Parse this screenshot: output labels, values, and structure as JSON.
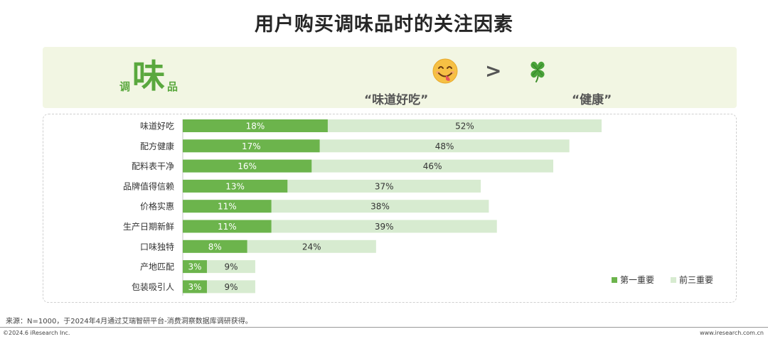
{
  "page": {
    "title": "用户购买调味品时的关注因素"
  },
  "banner": {
    "logo_left": "调",
    "logo_center": "味",
    "logo_right": "品",
    "taste_label": "“味道好吃”",
    "health_label": "“健康”",
    "comparator": ">",
    "taste_icon": "savoring-face-emoji-icon",
    "health_icon": "four-leaf-clover-icon"
  },
  "colors": {
    "first_choice": "#6cb44c",
    "top_three": "#d7ebd0",
    "brand_green": "#5aa83e"
  },
  "chart_data": {
    "type": "bar",
    "orientation": "horizontal",
    "layout": "overlapped",
    "categories": [
      "味道好吃",
      "配方健康",
      "配料表干净",
      "品牌值得信赖",
      "价格实惠",
      "生产日期新鲜",
      "口味独特",
      "产地匹配",
      "包装吸引人"
    ],
    "series": [
      {
        "name": "第一重要",
        "values": [
          18,
          17,
          16,
          13,
          11,
          11,
          8,
          3,
          3
        ],
        "labels": [
          "18%",
          "17%",
          "16%",
          "13%",
          "11%",
          "11%",
          "8%",
          "3%",
          "3%"
        ]
      },
      {
        "name": "前三重要",
        "values": [
          52,
          48,
          46,
          37,
          38,
          39,
          24,
          9,
          9
        ],
        "labels": [
          "52%",
          "48%",
          "46%",
          "37%",
          "38%",
          "39%",
          "24%",
          "9%",
          "9%"
        ]
      }
    ],
    "unit": "%",
    "xlim": [
      0,
      52
    ],
    "grid": false,
    "legend_position": "bottom-right"
  },
  "legend": {
    "first": "第一重要",
    "top3": "前三重要"
  },
  "footer": {
    "source": "来源：N=1000，于2024年4月通过艾瑞智研平台-消费洞察数据库调研获得。",
    "copyright": "©2024.6 iResearch Inc.",
    "website": "www.iresearch.com.cn"
  }
}
